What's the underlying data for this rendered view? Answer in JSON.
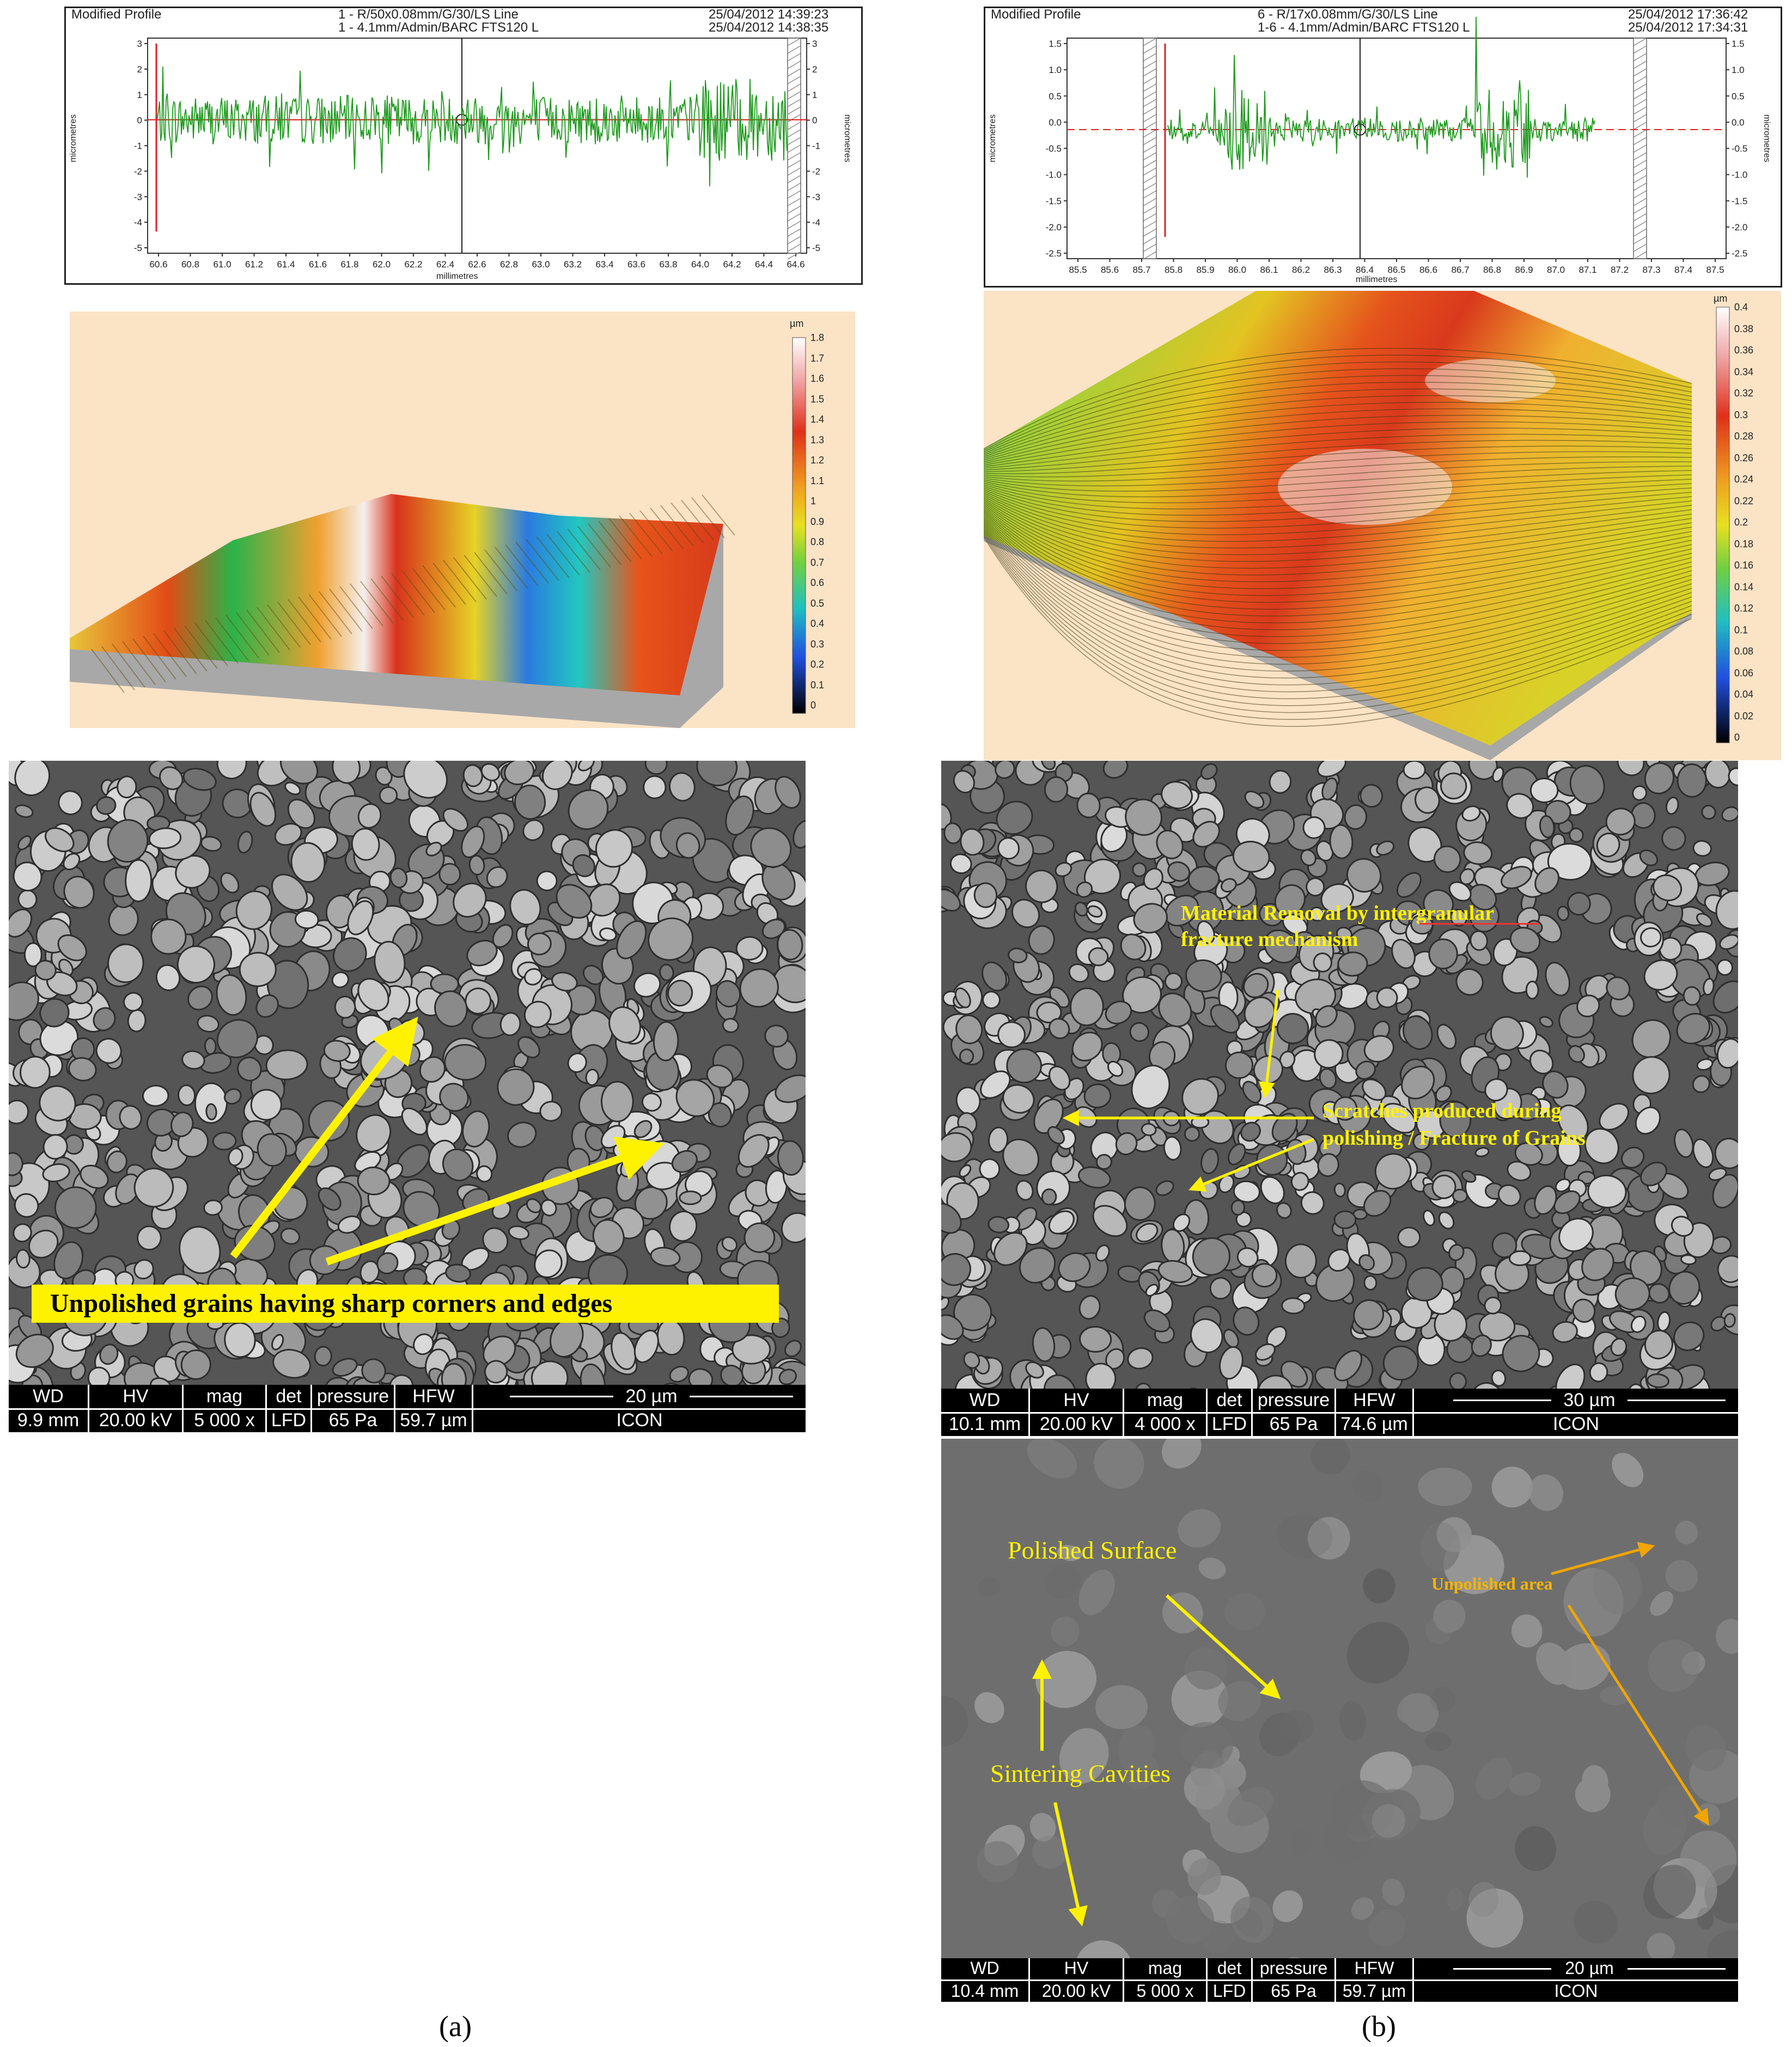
{
  "panel_a": {
    "profile": {
      "title": "Modified Profile",
      "line1": "1 - R/50x0.08mm/G/30/LS Line",
      "line2": "1 - 4.1mm/Admin/BARC FTS120 L",
      "date1": "25/04/2012 14:39:23",
      "date2": "25/04/2012 14:38:35",
      "ylabel": "micrometres",
      "xlabel": "millimetres",
      "yticks": [
        "3",
        "2",
        "1",
        "0",
        "-1",
        "-2",
        "-3",
        "-4",
        "-5"
      ],
      "xticks": [
        "60.6",
        "60.8",
        "61.0",
        "61.2",
        "61.4",
        "61.6",
        "61.8",
        "62.0",
        "62.2",
        "62.4",
        "62.6",
        "62.8",
        "63.0",
        "63.2",
        "63.4",
        "63.6",
        "63.8",
        "64.0",
        "64.2",
        "64.4",
        "64.6"
      ]
    },
    "topo": {
      "unit": "µm",
      "scale": [
        "1.8",
        "1.7",
        "1.6",
        "1.5",
        "1.4",
        "1.3",
        "1.2",
        "1.1",
        "1",
        "0.9",
        "0.8",
        "0.7",
        "0.6",
        "0.5",
        "0.4",
        "0.3",
        "0.2",
        "0.1",
        "0"
      ]
    },
    "sem": {
      "annotation": "Unpolished  grains having sharp corners and edges",
      "bar": {
        "wd_label": "WD",
        "wd": "9.9 mm",
        "hv_label": "HV",
        "hv": "20.00 kV",
        "mag_label": "mag",
        "mag": "5 000 x",
        "det_label": "det",
        "det": "LFD",
        "pressure_label": "pressure",
        "pressure": "65 Pa",
        "hfw_label": "HFW",
        "hfw": "59.7 µm",
        "scale": "20 µm",
        "brand": "ICON"
      }
    },
    "caption": "(a)"
  },
  "panel_b": {
    "profile": {
      "title": "Modified Profile",
      "line1": "6 - R/17x0.08mm/G/30/LS Line",
      "line2": "1-6 - 4.1mm/Admin/BARC FTS120 L",
      "date1": "25/04/2012 17:36:42",
      "date2": "25/04/2012 17:34:31",
      "ylabel": "micrometres",
      "xlabel": "millimetres",
      "yticks": [
        "1.5",
        "1.0",
        "0.5",
        "0.0",
        "-0.5",
        "-1.0",
        "-1.5",
        "-2.0",
        "-2.5"
      ],
      "xticks": [
        "85.5",
        "85.6",
        "85.7",
        "85.8",
        "85.9",
        "86.0",
        "86.1",
        "86.2",
        "86.3",
        "86.4",
        "86.5",
        "86.6",
        "86.7",
        "86.8",
        "86.9",
        "87.0",
        "87.1",
        "87.2",
        "87.3",
        "87.4",
        "87.5"
      ]
    },
    "topo": {
      "unit": "µm",
      "scale": [
        "0.4",
        "0.38",
        "0.36",
        "0.34",
        "0.32",
        "0.3",
        "0.28",
        "0.26",
        "0.24",
        "0.22",
        "0.2",
        "0.18",
        "0.16",
        "0.14",
        "0.12",
        "0.1",
        "0.08",
        "0.06",
        "0.04",
        "0.02",
        "0"
      ]
    },
    "sem1": {
      "annotation1_line1": "Material Removal by intergranular",
      "annotation1_line2": "fracture mechanism",
      "annotation2_line1": "Scratches produced during",
      "annotation2_line2": "polishing / Fracture of Grains",
      "bar": {
        "wd_label": "WD",
        "wd": "10.1 mm",
        "hv_label": "HV",
        "hv": "20.00 kV",
        "mag_label": "mag",
        "mag": "4 000 x",
        "det_label": "det",
        "det": "LFD",
        "pressure_label": "pressure",
        "pressure": "65 Pa",
        "hfw_label": "HFW",
        "hfw": "74.6 µm",
        "scale": "30 µm",
        "brand": "ICON"
      }
    },
    "sem2": {
      "polished": "Polished Surface",
      "unpolished": "Unpolished area",
      "cavities": "Sintering Cavities",
      "bar": {
        "wd_label": "WD",
        "wd": "10.4 mm",
        "hv_label": "HV",
        "hv": "20.00 kV",
        "mag_label": "mag",
        "mag": "5 000 x",
        "det_label": "det",
        "det": "LFD",
        "pressure_label": "pressure",
        "pressure": "65 Pa",
        "hfw_label": "HFW",
        "hfw": "59.7 µm",
        "scale": "20 µm",
        "brand": "ICON"
      }
    },
    "caption": "(b)"
  }
}
